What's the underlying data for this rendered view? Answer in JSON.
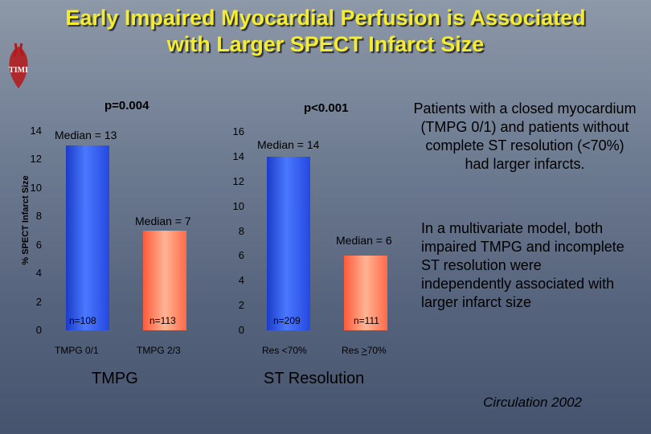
{
  "slide": {
    "title": "Early Impaired Myocardial Perfusion is Associated with Larger SPECT Infarct Size",
    "logo_text": "TIMI",
    "citation": "Circulation 2002",
    "side_text_1": "Patients with a closed myocardium (TMPG 0/1) and patients without complete ST resolution (<70%) had larger infarcts.",
    "side_text_2": "In a multivariate model, both impaired TMPG and incomplete ST resolution were independently associated with larger infarct size"
  },
  "chart_data": [
    {
      "type": "bar",
      "group_label": "TMPG",
      "ylabel": "% SPECT Infarct Size",
      "p_value": "p=0.004",
      "ylim": [
        0,
        14
      ],
      "yticks": [
        "0",
        "2",
        "4",
        "6",
        "8",
        "10",
        "12",
        "14"
      ],
      "categories": [
        "TMPG 0/1",
        "TMPG 2/3"
      ],
      "values": [
        13,
        7
      ],
      "median_labels": [
        "Median = 13",
        "Median = 7"
      ],
      "n_labels": [
        "n=108",
        "n=113"
      ],
      "colors": [
        "#2f5cf0",
        "#ff7a5a"
      ]
    },
    {
      "type": "bar",
      "group_label": "ST Resolution",
      "ylabel": "",
      "p_value": "p<0.001",
      "ylim": [
        0,
        16
      ],
      "yticks": [
        "0",
        "2",
        "4",
        "6",
        "8",
        "10",
        "12",
        "14",
        "16"
      ],
      "categories": [
        "Res <70%",
        "Res >70%"
      ],
      "values": [
        14,
        6
      ],
      "median_labels": [
        "Median = 14",
        "Median = 6"
      ],
      "n_labels": [
        "n=209",
        "n=111"
      ],
      "colors": [
        "#2f5cf0",
        "#ff7a5a"
      ]
    }
  ]
}
